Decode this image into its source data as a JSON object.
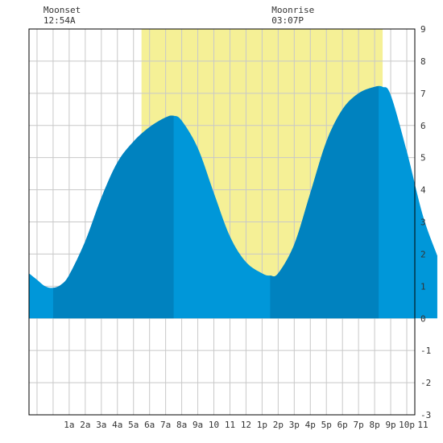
{
  "chart_data": {
    "type": "area",
    "title": "",
    "xlabel": "",
    "ylabel": "",
    "x_range_hours": [
      -1.5,
      22.5
    ],
    "ylim": [
      -3,
      9
    ],
    "y_ticks": [
      -3,
      -2,
      -1,
      0,
      1,
      2,
      3,
      4,
      5,
      6,
      7,
      8,
      9
    ],
    "x_ticks": [
      {
        "h": 1,
        "label": "1a"
      },
      {
        "h": 2,
        "label": "2a"
      },
      {
        "h": 3,
        "label": "3a"
      },
      {
        "h": 4,
        "label": "4a"
      },
      {
        "h": 5,
        "label": "5a"
      },
      {
        "h": 6,
        "label": "6a"
      },
      {
        "h": 7,
        "label": "7a"
      },
      {
        "h": 8,
        "label": "8a"
      },
      {
        "h": 9,
        "label": "9a"
      },
      {
        "h": 10,
        "label": "10"
      },
      {
        "h": 11,
        "label": "11"
      },
      {
        "h": 12,
        "label": "12"
      },
      {
        "h": 13,
        "label": "1p"
      },
      {
        "h": 14,
        "label": "2p"
      },
      {
        "h": 15,
        "label": "3p"
      },
      {
        "h": 16,
        "label": "4p"
      },
      {
        "h": 17,
        "label": "5p"
      },
      {
        "h": 18,
        "label": "6p"
      },
      {
        "h": 19,
        "label": "7p"
      },
      {
        "h": 20,
        "label": "8p"
      },
      {
        "h": 21,
        "label": "9p"
      },
      {
        "h": 22,
        "label": "10p"
      },
      {
        "h": 23,
        "label": "11"
      }
    ],
    "grid": true,
    "daylight_hours": [
      5.5,
      20.5
    ],
    "tide_points": [
      {
        "h": -1.5,
        "v": 1.4
      },
      {
        "h": -1.0,
        "v": 1.2
      },
      {
        "h": -0.5,
        "v": 1.0
      },
      {
        "h": 0.0,
        "v": 0.95
      },
      {
        "h": 0.5,
        "v": 1.05
      },
      {
        "h": 1.0,
        "v": 1.35
      },
      {
        "h": 2.0,
        "v": 2.4
      },
      {
        "h": 3.0,
        "v": 3.75
      },
      {
        "h": 4.0,
        "v": 4.85
      },
      {
        "h": 5.0,
        "v": 5.5
      },
      {
        "h": 6.0,
        "v": 5.95
      },
      {
        "h": 7.0,
        "v": 6.25
      },
      {
        "h": 7.5,
        "v": 6.3
      },
      {
        "h": 8.0,
        "v": 6.15
      },
      {
        "h": 9.0,
        "v": 5.3
      },
      {
        "h": 10.0,
        "v": 3.9
      },
      {
        "h": 11.0,
        "v": 2.55
      },
      {
        "h": 12.0,
        "v": 1.75
      },
      {
        "h": 13.0,
        "v": 1.4
      },
      {
        "h": 13.5,
        "v": 1.33
      },
      {
        "h": 14.0,
        "v": 1.4
      },
      {
        "h": 15.0,
        "v": 2.3
      },
      {
        "h": 16.0,
        "v": 3.9
      },
      {
        "h": 17.0,
        "v": 5.5
      },
      {
        "h": 18.0,
        "v": 6.5
      },
      {
        "h": 19.0,
        "v": 7.0
      },
      {
        "h": 20.0,
        "v": 7.2
      },
      {
        "h": 20.5,
        "v": 7.2
      },
      {
        "h": 21.0,
        "v": 6.95
      },
      {
        "h": 22.0,
        "v": 5.2
      },
      {
        "h": 23.0,
        "v": 3.2
      },
      {
        "h": 23.9,
        "v": 1.95
      }
    ],
    "dark_bands": [
      {
        "from": 0.0,
        "to": 7.5
      },
      {
        "from": 13.5,
        "to": 20.25
      }
    ],
    "annotations": [
      {
        "title": "Moonset",
        "time": "12:54A",
        "h": 0.9
      },
      {
        "title": "Moonrise",
        "time": "03:07P",
        "h": 15.1
      }
    ],
    "colors": {
      "daylight": "#f5f096",
      "tide_light": "#0097d9",
      "tide_dark": "#0082bf",
      "grid": "#c8c8c8",
      "background": "#ffffff"
    }
  }
}
